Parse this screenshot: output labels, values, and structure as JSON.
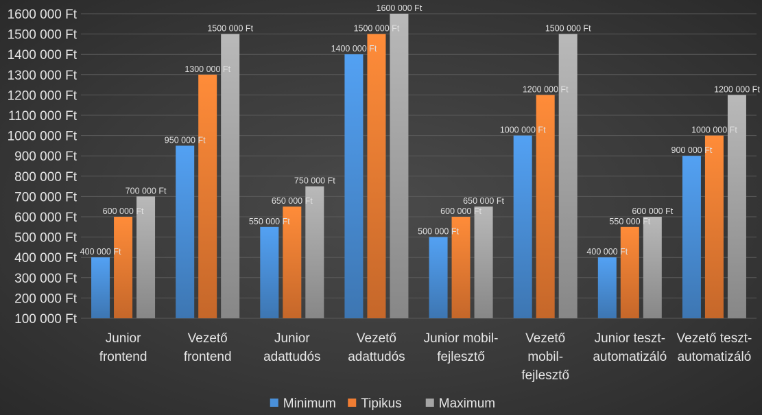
{
  "chart_data": {
    "type": "bar",
    "categories": [
      [
        "Junior",
        "frontend"
      ],
      [
        "Vezető",
        "frontend"
      ],
      [
        "Junior",
        "adattudós"
      ],
      [
        "Vezető",
        "adattudós"
      ],
      [
        "Junior mobil-",
        "fejlesztő"
      ],
      [
        "Vezető",
        "mobil-",
        "fejlesztő"
      ],
      [
        "Junior teszt-",
        "automatizáló"
      ],
      [
        "Vezető teszt-",
        "automatizáló"
      ]
    ],
    "series": [
      {
        "name": "Minimum",
        "color": "#4a90d9",
        "values": [
          400000,
          950000,
          550000,
          1400000,
          500000,
          1000000,
          400000,
          900000
        ],
        "labels": [
          "400 000 Ft",
          "950 000 Ft",
          "550 000 Ft",
          "1400 000 Ft",
          "500 000 Ft",
          "1000 000 Ft",
          "400 000 Ft",
          "900 000 Ft"
        ]
      },
      {
        "name": "Tipikus",
        "color": "#f07d33",
        "values": [
          600000,
          1300000,
          650000,
          1500000,
          600000,
          1200000,
          550000,
          1000000
        ],
        "labels": [
          "600 000 Ft",
          "1300 000 Ft",
          "650 000 Ft",
          "1500 000 Ft",
          "600 000 Ft",
          "1200 000 Ft",
          "550 000 Ft",
          "1000 000 Ft"
        ]
      },
      {
        "name": "Maximum",
        "color": "#a5a5a5",
        "values": [
          700000,
          1500000,
          750000,
          1600000,
          650000,
          1500000,
          600000,
          1200000
        ],
        "labels": [
          "700 000 Ft",
          "1500 000 Ft",
          "750 000 Ft",
          "1600 000 Ft",
          "650 000 Ft",
          "1500 000 Ft",
          "600 000 Ft",
          "1200 000 Ft"
        ]
      }
    ],
    "ylim": [
      100000,
      1600000
    ],
    "y_ticks": [
      100000,
      200000,
      300000,
      400000,
      500000,
      600000,
      700000,
      800000,
      900000,
      1000000,
      1100000,
      1200000,
      1300000,
      1400000,
      1500000,
      1600000
    ],
    "y_tick_labels": [
      "100 000 Ft",
      "200 000 Ft",
      "300 000 Ft",
      "400 000 Ft",
      "500 000 Ft",
      "600 000 Ft",
      "700 000 Ft",
      "800 000 Ft",
      "900 000 Ft",
      "1000 000 Ft",
      "1100 000 Ft",
      "1200 000 Ft",
      "1300 000 Ft",
      "1400 000 Ft",
      "1500 000 Ft",
      "1600 000 Ft"
    ],
    "grid": true,
    "legend": "bottom",
    "background_color": "#404040",
    "grid_color": "#5a5a5a"
  }
}
